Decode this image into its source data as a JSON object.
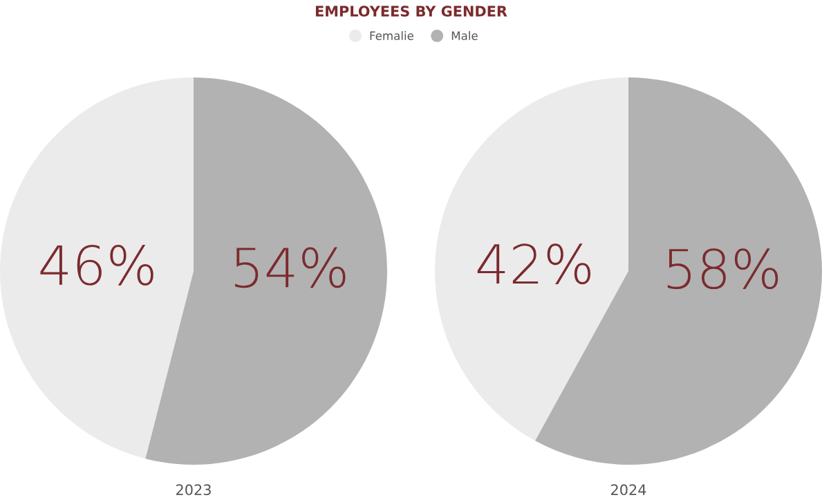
{
  "chart_data": [
    {
      "type": "pie",
      "title": "EMPLOYEES BY GENDER",
      "legend": "top",
      "categories": [
        "Femalie",
        "Male"
      ],
      "values": [
        46,
        54
      ],
      "colors": [
        "#ebebeb",
        "#b2b2b2"
      ],
      "value_labels": [
        "46%",
        "54%"
      ],
      "xlabel": "2023"
    },
    {
      "type": "pie",
      "categories": [
        null,
        null
      ],
      "values": [
        42,
        58
      ],
      "colors": [
        "#ebebeb",
        "#b2b2b2"
      ],
      "value_labels": [
        "42%",
        "58%"
      ],
      "xlabel": "2024"
    }
  ]
}
